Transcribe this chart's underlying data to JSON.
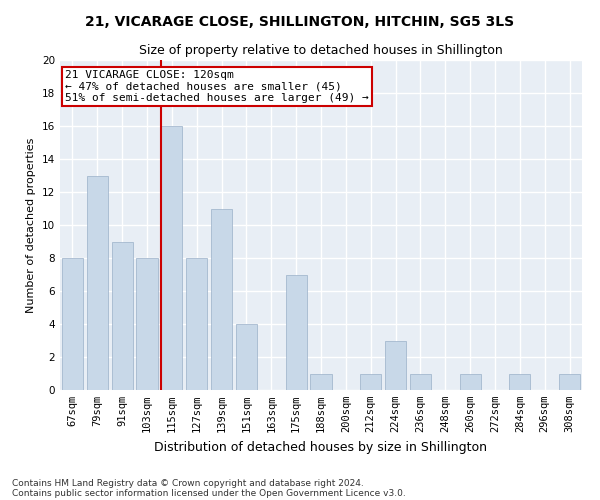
{
  "title": "21, VICARAGE CLOSE, SHILLINGTON, HITCHIN, SG5 3LS",
  "subtitle": "Size of property relative to detached houses in Shillington",
  "xlabel": "Distribution of detached houses by size in Shillington",
  "ylabel": "Number of detached properties",
  "categories": [
    "67sqm",
    "79sqm",
    "91sqm",
    "103sqm",
    "115sqm",
    "127sqm",
    "139sqm",
    "151sqm",
    "163sqm",
    "175sqm",
    "188sqm",
    "200sqm",
    "212sqm",
    "224sqm",
    "236sqm",
    "248sqm",
    "260sqm",
    "272sqm",
    "284sqm",
    "296sqm",
    "308sqm"
  ],
  "values": [
    8,
    13,
    9,
    8,
    16,
    8,
    11,
    4,
    0,
    7,
    1,
    0,
    1,
    3,
    1,
    0,
    1,
    0,
    1,
    0,
    1
  ],
  "bar_color": "#c8d8e8",
  "bar_edge_color": "#9ab0c8",
  "highlight_index": 4,
  "highlight_line_color": "#cc0000",
  "ylim": [
    0,
    20
  ],
  "yticks": [
    0,
    2,
    4,
    6,
    8,
    10,
    12,
    14,
    16,
    18,
    20
  ],
  "annotation_line1": "21 VICARAGE CLOSE: 120sqm",
  "annotation_line2": "← 47% of detached houses are smaller (45)",
  "annotation_line3": "51% of semi-detached houses are larger (49) →",
  "annotation_box_color": "#ffffff",
  "annotation_box_edge_color": "#cc0000",
  "footer_line1": "Contains HM Land Registry data © Crown copyright and database right 2024.",
  "footer_line2": "Contains public sector information licensed under the Open Government Licence v3.0.",
  "fig_background_color": "#ffffff",
  "plot_background_color": "#e8eef5",
  "grid_color": "#ffffff",
  "title_fontsize": 10,
  "subtitle_fontsize": 9,
  "axis_label_fontsize": 9,
  "ylabel_fontsize": 8,
  "tick_fontsize": 7.5,
  "annotation_fontsize": 8,
  "footer_fontsize": 6.5
}
